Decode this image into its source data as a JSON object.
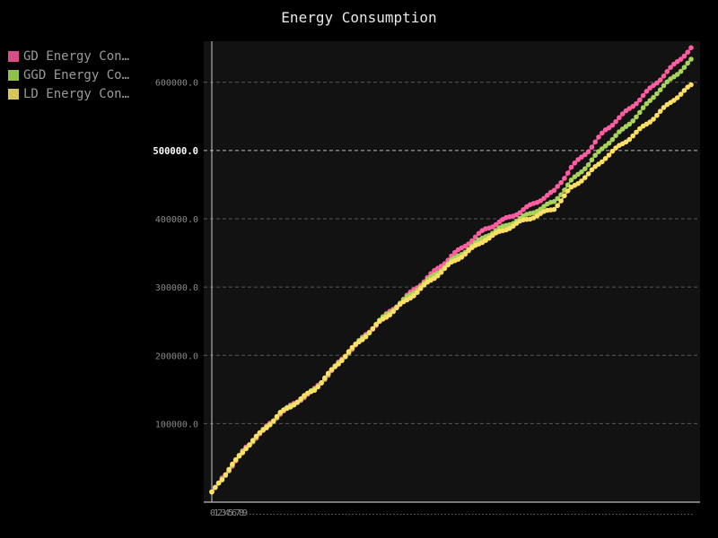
{
  "chart_data": {
    "type": "line",
    "title": "Energy Consumption",
    "xlabel": "",
    "ylabel": "",
    "xlim": [
      0,
      140
    ],
    "ylim": [
      -15000,
      660000
    ],
    "yticks": [
      {
        "value": 100000,
        "label": "100000.0",
        "major": false
      },
      {
        "value": 200000,
        "label": "200000.0",
        "major": false
      },
      {
        "value": 300000,
        "label": "300000.0",
        "major": false
      },
      {
        "value": 400000,
        "label": "400000.0",
        "major": false
      },
      {
        "value": 500000,
        "label": "500000.0",
        "major": true
      },
      {
        "value": 600000,
        "label": "600000.0",
        "major": false
      }
    ],
    "xtick_labels": [
      "0",
      "1",
      "2",
      "3",
      "4",
      "5",
      "6",
      "7",
      "8",
      "9"
    ],
    "grid": true,
    "legend_position": "top-left",
    "background": "#121212",
    "series": [
      {
        "name": "GD Energy Cons…",
        "color": "#d94e8a",
        "marker_color": "#ff5fa2",
        "anchors": [
          [
            0,
            0
          ],
          [
            10,
            65000
          ],
          [
            20,
            115000
          ],
          [
            30,
            150000
          ],
          [
            40,
            205000
          ],
          [
            50,
            255000
          ],
          [
            60,
            300000
          ],
          [
            70,
            345000
          ],
          [
            80,
            385000
          ],
          [
            90,
            410000
          ],
          [
            100,
            440000
          ],
          [
            105,
            475000
          ],
          [
            110,
            500000
          ],
          [
            115,
            530000
          ],
          [
            120,
            552000
          ],
          [
            125,
            575000
          ],
          [
            130,
            600000
          ],
          [
            135,
            625000
          ],
          [
            140,
            650000
          ]
        ]
      },
      {
        "name": "GGD Energy Con…",
        "color": "#8fc04a",
        "marker_color": "#a9d35a",
        "anchors": [
          [
            0,
            0
          ],
          [
            10,
            65000
          ],
          [
            20,
            115000
          ],
          [
            30,
            150000
          ],
          [
            40,
            205000
          ],
          [
            50,
            255000
          ],
          [
            60,
            297000
          ],
          [
            70,
            338000
          ],
          [
            80,
            375000
          ],
          [
            90,
            400000
          ],
          [
            100,
            425000
          ],
          [
            105,
            455000
          ],
          [
            110,
            480000
          ],
          [
            115,
            508000
          ],
          [
            120,
            530000
          ],
          [
            125,
            555000
          ],
          [
            130,
            585000
          ],
          [
            135,
            608000
          ],
          [
            140,
            632000
          ]
        ]
      },
      {
        "name": "LD Energy Cons…",
        "color": "#d6c65a",
        "marker_color": "#ffe066",
        "anchors": [
          [
            0,
            0
          ],
          [
            10,
            65000
          ],
          [
            20,
            115000
          ],
          [
            30,
            150000
          ],
          [
            40,
            205000
          ],
          [
            50,
            253000
          ],
          [
            60,
            293000
          ],
          [
            70,
            335000
          ],
          [
            80,
            370000
          ],
          [
            90,
            395000
          ],
          [
            100,
            415000
          ],
          [
            105,
            445000
          ],
          [
            110,
            465000
          ],
          [
            115,
            490000
          ],
          [
            120,
            510000
          ],
          [
            125,
            530000
          ],
          [
            130,
            552000
          ],
          [
            135,
            575000
          ],
          [
            140,
            595000
          ]
        ]
      }
    ]
  }
}
